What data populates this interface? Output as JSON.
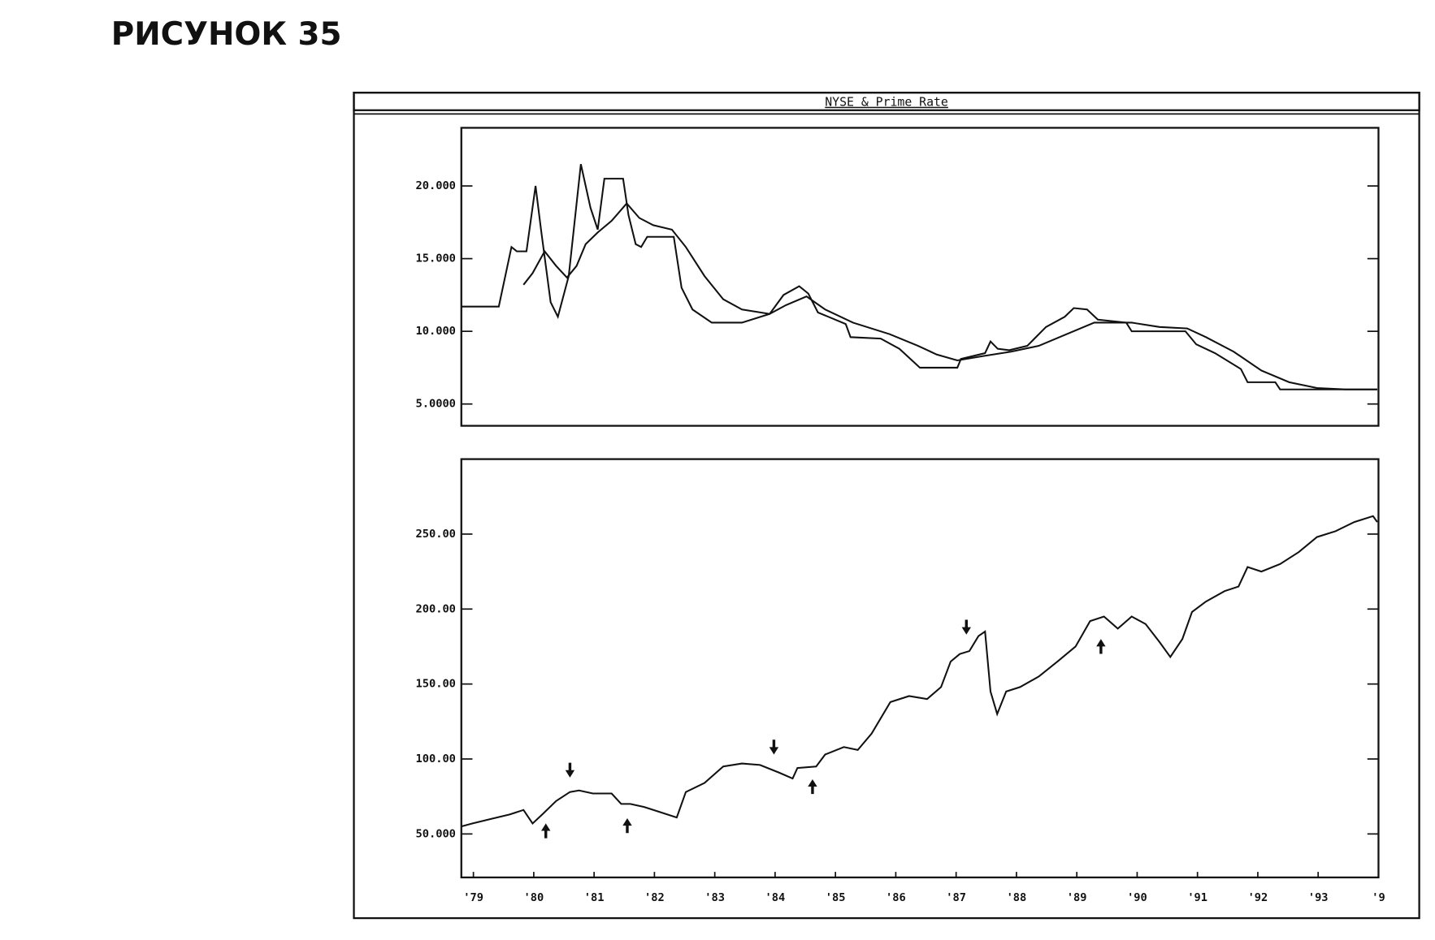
{
  "figure_label": "РИСУНОК 35",
  "window_title": "NYSE & Prime Rate",
  "chart_data": [
    {
      "type": "line",
      "xlim": [
        1978.8,
        1994.0
      ],
      "ylim": [
        3.5,
        24
      ],
      "yticks": [
        {
          "value": 5,
          "label": "5.0000"
        },
        {
          "value": 10,
          "label": "10.000"
        },
        {
          "value": 15,
          "label": "15.000"
        },
        {
          "value": 20,
          "label": "20.000"
        }
      ],
      "grid": false,
      "series": [
        {
          "color": "#111111",
          "x": [
            1978.8,
            1979.42,
            1979.63,
            1979.72,
            1979.88,
            1980.03,
            1980.12,
            1980.28,
            1980.4,
            1980.58,
            1980.78,
            1980.94,
            1981.06,
            1981.17,
            1981.48,
            1981.57,
            1981.69,
            1981.78,
            1981.88,
            1982.32,
            1982.45,
            1982.63,
            1982.95,
            1983.45,
            1983.91,
            1984.14,
            1984.4,
            1984.55,
            1984.71,
            1985.17,
            1985.25,
            1985.75,
            1986.06,
            1986.4,
            1987.02,
            1987.08,
            1987.48,
            1987.57,
            1987.69,
            1987.88,
            1988.18,
            1988.49,
            1988.8,
            1988.95,
            1989.17,
            1989.35,
            1989.82,
            1989.91,
            1990.8,
            1990.98,
            1991.29,
            1991.72,
            1991.83,
            1992.29,
            1992.37,
            1993.98
          ],
          "values": [
            11.7,
            11.7,
            15.8,
            15.5,
            15.5,
            20.0,
            17.0,
            12.0,
            11.0,
            13.8,
            21.5,
            18.5,
            17.0,
            20.5,
            20.5,
            18.0,
            16.0,
            15.8,
            16.5,
            16.5,
            13.0,
            11.5,
            10.6,
            10.6,
            11.2,
            12.5,
            13.1,
            12.6,
            11.3,
            10.5,
            9.6,
            9.5,
            8.8,
            7.5,
            7.5,
            8.1,
            8.5,
            9.3,
            8.8,
            8.7,
            9.0,
            10.3,
            11.0,
            11.6,
            11.5,
            10.8,
            10.6,
            10.0,
            10.0,
            9.1,
            8.5,
            7.4,
            6.5,
            6.5,
            6.0,
            6.0
          ]
        },
        {
          "color": "#111111",
          "x": [
            1979.83,
            1979.98,
            1980.18,
            1980.37,
            1980.55,
            1980.71,
            1980.86,
            1981.06,
            1981.29,
            1981.54,
            1981.75,
            1981.98,
            1982.29,
            1982.52,
            1982.83,
            1983.14,
            1983.45,
            1983.91,
            1984.18,
            1984.52,
            1984.83,
            1985.29,
            1985.9,
            1986.37,
            1986.68,
            1987.02,
            1987.45,
            1987.91,
            1988.37,
            1988.83,
            1989.29,
            1989.91,
            1990.37,
            1990.83,
            1991.14,
            1991.6,
            1992.06,
            1992.52,
            1992.98,
            1993.45,
            1993.98
          ],
          "values": [
            13.2,
            14.0,
            15.5,
            14.5,
            13.7,
            14.5,
            16.0,
            16.8,
            17.6,
            18.8,
            17.8,
            17.3,
            17.0,
            15.8,
            13.8,
            12.2,
            11.5,
            11.2,
            11.8,
            12.4,
            11.5,
            10.6,
            9.8,
            9.0,
            8.4,
            8.0,
            8.3,
            8.6,
            9.0,
            9.8,
            10.6,
            10.6,
            10.3,
            10.2,
            9.6,
            8.6,
            7.3,
            6.5,
            6.1,
            6.0,
            6.0
          ]
        }
      ]
    },
    {
      "type": "line",
      "xlim": [
        1978.8,
        1994.0
      ],
      "ylim": [
        21,
        300
      ],
      "yticks": [
        {
          "value": 50,
          "label": "50.000"
        },
        {
          "value": 100,
          "label": "100.00"
        },
        {
          "value": 150,
          "label": "150.00"
        },
        {
          "value": 200,
          "label": "200.00"
        },
        {
          "value": 250,
          "label": "250.00"
        }
      ],
      "xticks": [
        {
          "value": 1979,
          "label": "'79"
        },
        {
          "value": 1980,
          "label": "'80"
        },
        {
          "value": 1981,
          "label": "'81"
        },
        {
          "value": 1982,
          "label": "'82"
        },
        {
          "value": 1983,
          "label": "'83"
        },
        {
          "value": 1984,
          "label": "'84"
        },
        {
          "value": 1985,
          "label": "'85"
        },
        {
          "value": 1986,
          "label": "'86"
        },
        {
          "value": 1987,
          "label": "'87"
        },
        {
          "value": 1988,
          "label": "'88"
        },
        {
          "value": 1989,
          "label": "'89"
        },
        {
          "value": 1990,
          "label": "'90"
        },
        {
          "value": 1991,
          "label": "'91"
        },
        {
          "value": 1992,
          "label": "'92"
        },
        {
          "value": 1993,
          "label": "'93"
        },
        {
          "value": 1994,
          "label": "'9"
        }
      ],
      "grid": false,
      "series": [
        {
          "color": "#111111",
          "x": [
            1978.8,
            1978.98,
            1979.29,
            1979.6,
            1979.83,
            1979.98,
            1980.14,
            1980.37,
            1980.6,
            1980.75,
            1980.98,
            1981.29,
            1981.45,
            1981.6,
            1981.83,
            1982.06,
            1982.37,
            1982.52,
            1982.83,
            1983.14,
            1983.45,
            1983.75,
            1984.06,
            1984.29,
            1984.37,
            1984.68,
            1984.83,
            1985.14,
            1985.37,
            1985.6,
            1985.91,
            1986.22,
            1986.52,
            1986.75,
            1986.91,
            1987.06,
            1987.22,
            1987.37,
            1987.48,
            1987.57,
            1987.68,
            1987.83,
            1988.06,
            1988.37,
            1988.68,
            1988.98,
            1989.22,
            1989.45,
            1989.68,
            1989.91,
            1990.14,
            1990.37,
            1990.55,
            1990.75,
            1990.91,
            1991.14,
            1991.45,
            1991.68,
            1991.83,
            1992.06,
            1992.37,
            1992.68,
            1992.98,
            1993.29,
            1993.6,
            1993.91,
            1993.98
          ],
          "values": [
            55,
            57,
            60,
            63,
            66,
            57,
            63,
            72,
            78,
            79,
            77,
            77,
            70,
            70,
            68,
            65,
            61,
            78,
            84,
            95,
            97,
            96,
            91,
            87,
            94,
            95,
            103,
            108,
            106,
            117,
            138,
            142,
            140,
            148,
            165,
            170,
            172,
            182,
            185,
            145,
            130,
            145,
            148,
            155,
            165,
            175,
            192,
            195,
            187,
            195,
            190,
            178,
            168,
            180,
            198,
            205,
            212,
            215,
            228,
            225,
            230,
            238,
            248,
            252,
            258,
            262,
            258
          ]
        }
      ],
      "signals": {
        "down": {
          "x": [
            1980.6,
            1983.98,
            1987.17
          ],
          "y": [
            87.6,
            103,
            183
          ]
        },
        "up": {
          "x": [
            1980.2,
            1981.55,
            1984.62,
            1989.4
          ],
          "y": [
            57,
            60.5,
            86.5,
            180
          ]
        }
      }
    }
  ]
}
